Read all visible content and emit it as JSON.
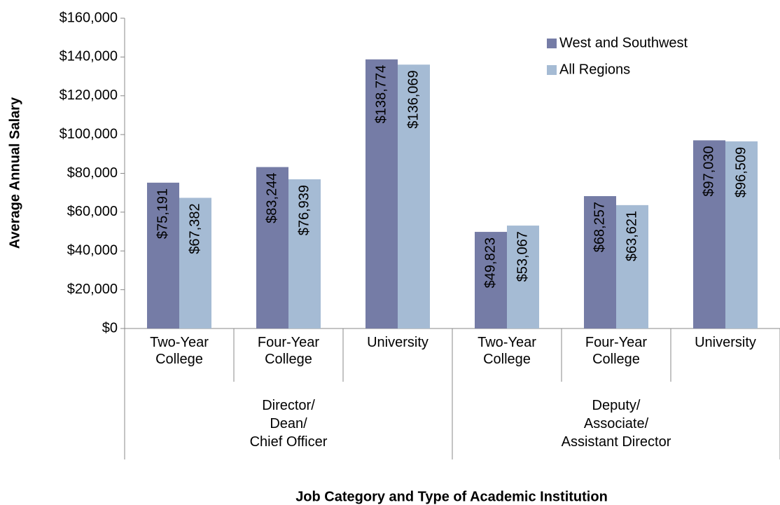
{
  "chart_data": {
    "type": "bar",
    "y_label": "Average Annual Salary",
    "x_label": "Job Category and Type of Academic Institution",
    "categories": [
      [
        "Two-Year",
        "College"
      ],
      [
        "Four-Year",
        "College"
      ],
      [
        "University"
      ],
      [
        "Two-Year",
        "College"
      ],
      [
        "Four-Year",
        "College"
      ],
      [
        "University"
      ]
    ],
    "groups": [
      {
        "label": [
          "Director/",
          "Dean/",
          "Chief Officer"
        ],
        "size": 3
      },
      {
        "label": [
          "Deputy/",
          "Associate/",
          "Assistant Director"
        ],
        "size": 3
      }
    ],
    "series": [
      {
        "name": "West and Southwest",
        "color": "#757ca6",
        "values": [
          75191,
          83244,
          138774,
          49823,
          68257,
          97030
        ],
        "value_labels": [
          "$75,191",
          "$83,244",
          "$138,774",
          "$49,823",
          "$68,257",
          "$97,030"
        ]
      },
      {
        "name": "All Regions",
        "color": "#a5bbd4",
        "values": [
          67382,
          76939,
          136069,
          53067,
          63621,
          96509
        ],
        "value_labels": [
          "$67,382",
          "$76,939",
          "$136,069",
          "$53,067",
          "$63,621",
          "$96,509"
        ]
      }
    ],
    "ylim": [
      0,
      160000
    ],
    "yticks": [
      {
        "value": 0,
        "label": "$0"
      },
      {
        "value": 20000,
        "label": "$20,000"
      },
      {
        "value": 40000,
        "label": "$40,000"
      },
      {
        "value": 60000,
        "label": "$60,000"
      },
      {
        "value": 80000,
        "label": "$80,000"
      },
      {
        "value": 100000,
        "label": "$100,000"
      },
      {
        "value": 120000,
        "label": "$120,000"
      },
      {
        "value": 140000,
        "label": "$140,000"
      },
      {
        "value": 160000,
        "label": "$160,000"
      }
    ],
    "legend": "top-right"
  }
}
